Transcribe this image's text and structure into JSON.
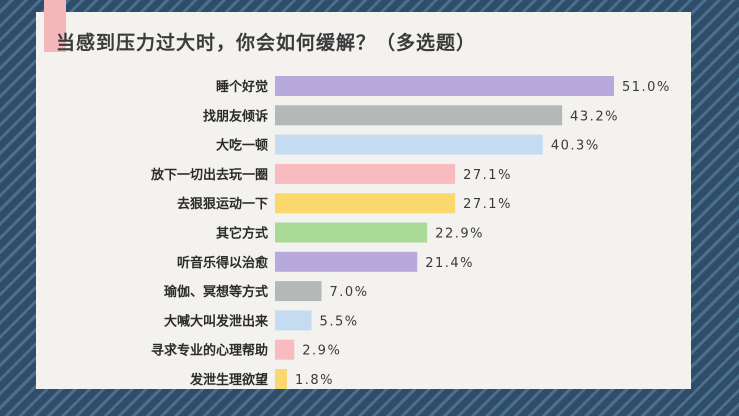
{
  "chart_data": {
    "type": "bar",
    "orientation": "horizontal",
    "title": "当感到压力过大时，你会如何缓解？（多选题）",
    "categories": [
      "睡个好觉",
      "找朋友倾诉",
      "大吃一顿",
      "放下一切出去玩一圈",
      "去狠狠运动一下",
      "其它方式",
      "听音乐得以治愈",
      "瑜伽、冥想等方式",
      "大喊大叫发泄出来",
      "寻求专业的心理帮助",
      "发泄生理欲望"
    ],
    "values": [
      51.0,
      43.2,
      40.3,
      27.1,
      27.1,
      22.9,
      21.4,
      7.0,
      5.5,
      2.9,
      1.8
    ],
    "value_labels": [
      "51.0%",
      "43.2%",
      "40.3%",
      "27.1%",
      "27.1%",
      "22.9%",
      "21.4%",
      "7.0%",
      "5.5%",
      "2.9%",
      "1.8%"
    ],
    "bar_colors": [
      "#b7a9dc",
      "#b4b8b8",
      "#c5dbf1",
      "#f8bcc0",
      "#fbd86e",
      "#a9db97",
      "#b7a9dc",
      "#b4b8b8",
      "#c5dbf1",
      "#f8bcc0",
      "#fbd86e"
    ],
    "xlim": [
      0,
      51
    ],
    "grid": false,
    "legend": "none"
  }
}
